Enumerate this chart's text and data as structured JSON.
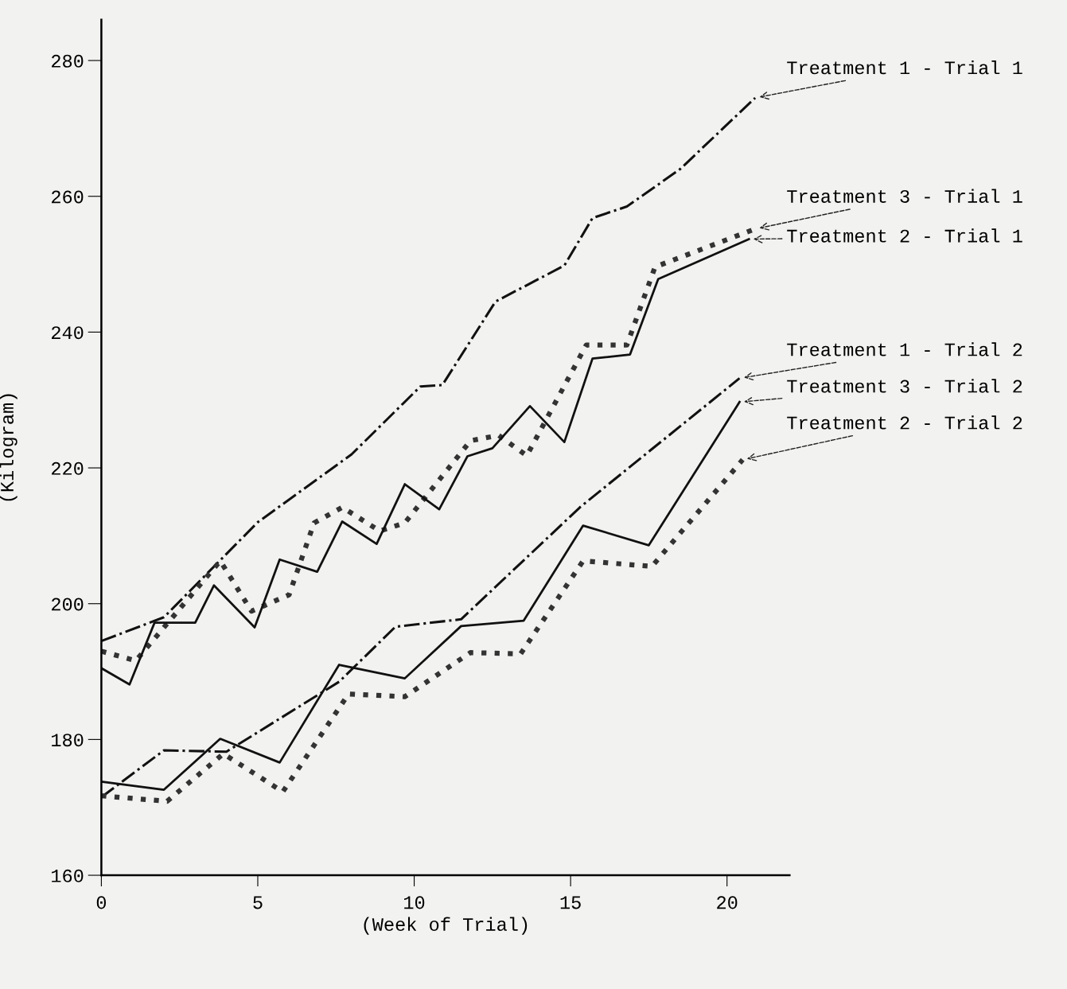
{
  "chart_data": {
    "type": "line",
    "xlabel": "(Week of Trial)",
    "ylabel": "(Kilogram)",
    "xlim": [
      0,
      22
    ],
    "xticks": [
      0,
      5,
      10,
      15,
      20
    ],
    "ylim": [
      160,
      286
    ],
    "yticks": [
      160,
      180,
      200,
      220,
      240,
      260,
      280
    ],
    "grid": false,
    "legend": false,
    "marker": "none",
    "series": [
      {
        "name": "Treatment 1 - Trial 1",
        "color": "#111111",
        "line_style": "dashed",
        "x": [
          0,
          2,
          5,
          8,
          10.2,
          10.9,
          12.6,
          14.8,
          15.7,
          16.8,
          18.5,
          20.9
        ],
        "values": [
          194.5,
          198,
          212,
          222,
          232,
          232.2,
          244.5,
          249.8,
          256.8,
          258.5,
          264,
          274.5
        ]
      },
      {
        "name": "Treatment 3 - Trial 1",
        "color": "#333333",
        "line_style": "dotted",
        "x": [
          0,
          1.1,
          3.8,
          4.8,
          6,
          6.8,
          7.7,
          8.9,
          9.7,
          11.8,
          12.7,
          13.6,
          15.5,
          16.8,
          17.7,
          20.9
        ],
        "values": [
          193,
          191.6,
          206.3,
          198.9,
          201.3,
          211.9,
          214.2,
          210.7,
          211.9,
          224,
          224.8,
          221.8,
          238.1,
          238.1,
          249.6,
          255.2
        ]
      },
      {
        "name": "Treatment 2 - Trial 1",
        "color": "#111111",
        "line_style": "solid",
        "x": [
          0,
          0.9,
          1.7,
          3,
          3.6,
          4.9,
          5.7,
          6.9,
          7.7,
          8.8,
          9.7,
          10.8,
          11.7,
          12.5,
          13.7,
          14.8,
          15.7,
          16.9,
          17.8,
          20.7
        ],
        "values": [
          190.5,
          188.1,
          197.2,
          197.2,
          202.7,
          196.5,
          206.5,
          204.7,
          212.1,
          208.8,
          217.6,
          213.9,
          221.7,
          222.9,
          229.1,
          223.8,
          236.1,
          236.7,
          247.8,
          253.7
        ]
      },
      {
        "name": "Treatment 1 - Trial 2",
        "color": "#111111",
        "line_style": "dashed",
        "x": [
          0,
          2,
          4,
          7.6,
          9.4,
          11.5,
          15.3,
          20.4
        ],
        "values": [
          171.5,
          178.4,
          178.2,
          188.5,
          196.6,
          197.7,
          214.2,
          233.2
        ]
      },
      {
        "name": "Treatment 3 - Trial 2",
        "color": "#111111",
        "line_style": "solid",
        "x": [
          0,
          2,
          3.8,
          5.7,
          7.6,
          9.7,
          11.5,
          13.5,
          15.4,
          17.5,
          20.4
        ],
        "values": [
          173.8,
          172.6,
          180.1,
          176.6,
          191,
          189,
          196.7,
          197.5,
          211.5,
          208.6,
          229.7
        ]
      },
      {
        "name": "Treatment 2 - Trial 2",
        "color": "#333333",
        "line_style": "dotted",
        "x": [
          0,
          2.1,
          3.9,
          5.8,
          7.9,
          9.7,
          11.8,
          13.4,
          15.4,
          17.6,
          20.5
        ],
        "values": [
          171.7,
          170.9,
          177.9,
          172.3,
          186.7,
          186.3,
          192.8,
          192.6,
          206.3,
          205.5,
          221.2
        ]
      }
    ]
  }
}
